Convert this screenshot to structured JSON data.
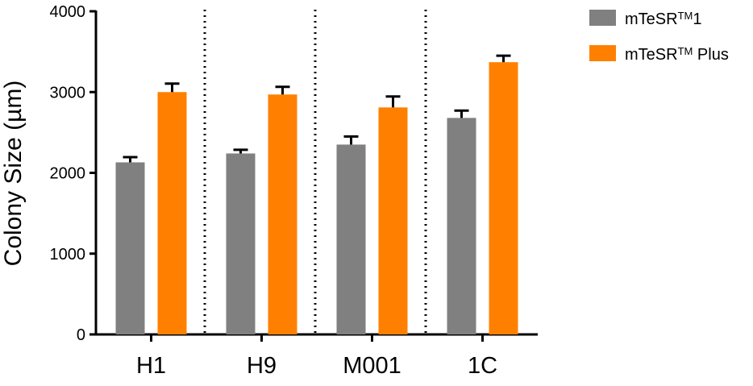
{
  "chart_data": {
    "type": "bar",
    "title": "",
    "xlabel": "",
    "ylabel": "Colony Size (µm)",
    "ylim": [
      0,
      4000
    ],
    "yticks": [
      "0",
      "1000",
      "2000",
      "3000",
      "4000"
    ],
    "categories": [
      "H1",
      "H9",
      "M001",
      "1C"
    ],
    "series": [
      {
        "name": "mTeSR™ 1",
        "legend_main": "mTeSR",
        "legend_sup": "TM",
        "legend_tail": "1",
        "color": "#808080",
        "values": [
          2130,
          2240,
          2350,
          2680
        ],
        "errors": [
          65,
          45,
          100,
          90
        ]
      },
      {
        "name": "mTeSR™ Plus",
        "legend_main": "mTeSR",
        "legend_sup": "TM",
        "legend_tail": " Plus",
        "color": "#ff8000",
        "values": [
          3000,
          2970,
          2810,
          3370
        ],
        "errors": [
          105,
          95,
          135,
          80
        ]
      }
    ],
    "grid": false,
    "group_separators": "dotted",
    "legend_position": "top-right"
  }
}
